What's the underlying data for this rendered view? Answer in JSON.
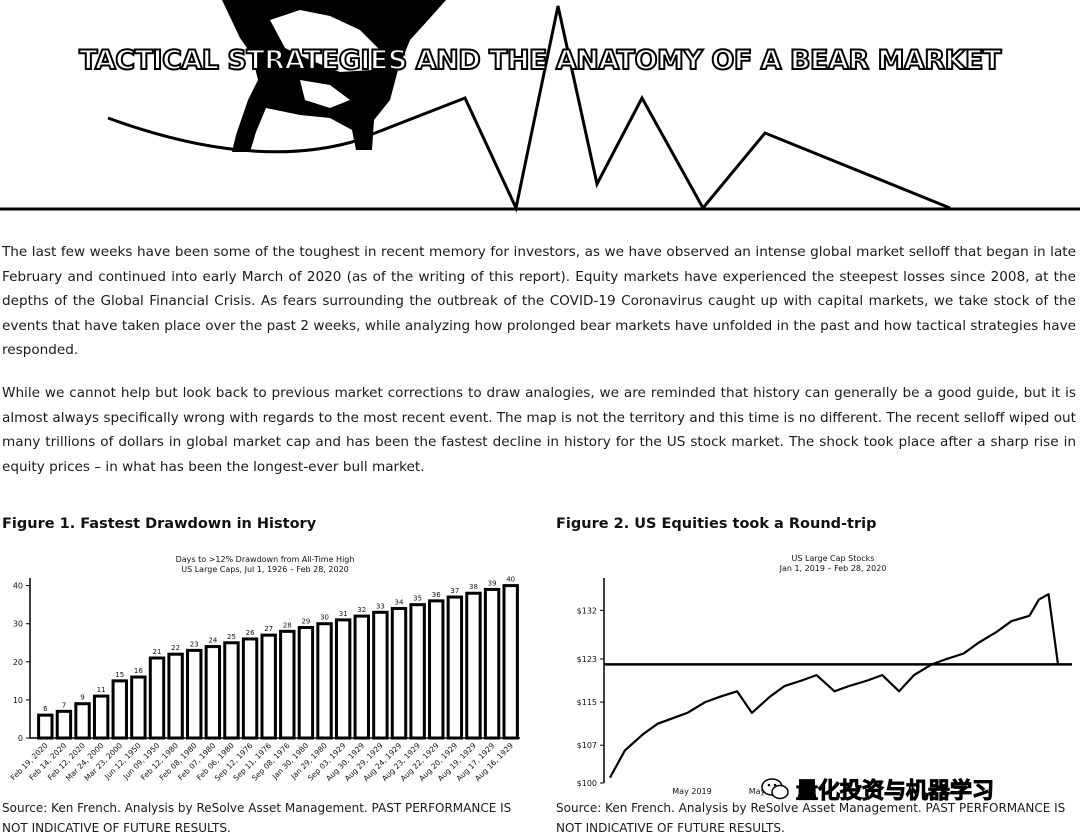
{
  "banner": {
    "title": "TACTICAL STRATEGIES AND THE ANATOMY OF A BEAR MARKET"
  },
  "paragraphs": [
    "The last few weeks have been some of the toughest in recent memory for investors, as we have observed an intense global market selloff that began in late February and continued into early March of 2020 (as of the writing of this report). Equity markets have experienced the steepest losses since 2008, at the depths of the Global Financial Crisis. As fears surrounding the outbreak of the COVID-19 Coronavirus caught up with capital markets, we take stock of the events that have taken place over the past 2 weeks, while analyzing how prolonged bear markets have unfolded in the past and how tactical strategies have responded.",
    "While we cannot help but look back to previous market corrections to draw analogies, we are reminded that history can generally be a good guide, but it is almost always specifically wrong with regards to the most recent event. The map is not the territory and this time is no different. The recent selloff wiped out many trillions of dollars in global market cap and has been the fastest decline in history for the US stock market. The shock took place after a sharp rise in equity prices – in what has been the longest-ever bull market."
  ],
  "figure1": {
    "caption": "Figure 1. Fastest Drawdown in History",
    "source": "Source: Ken French. Analysis by ReSolve Asset Management. PAST PERFORMANCE IS NOT INDICATIVE OF FUTURE RESULTS."
  },
  "figure2": {
    "caption": "Figure 2. US Equities took a Round-trip",
    "source": "Source: Ken French. Analysis by ReSolve Asset Management. PAST PERFORMANCE IS NOT INDICATIVE OF FUTURE RESULTS."
  },
  "watermark": {
    "text": "量化投资与机器学习",
    "icon": "wechat-icon"
  },
  "chart_data": [
    {
      "type": "bar",
      "title": "Days to >12% Drawdown from All-Time High",
      "subtitle": "US Large Caps, Jul 1, 1926 – Feb 28, 2020",
      "xlabel": "",
      "ylabel": "",
      "ylim": [
        0,
        42
      ],
      "yticks": [
        0,
        10,
        20,
        30,
        40
      ],
      "grid": false,
      "categories": [
        "Feb 19, 2020",
        "Feb 14, 2020",
        "Feb 12, 2020",
        "Mar 24, 2000",
        "Mar 23, 2000",
        "Jun 12, 1950",
        "Jun 09, 1950",
        "Feb 12, 1980",
        "Feb 08, 1980",
        "Feb 07, 1980",
        "Feb 06, 1980",
        "Sep 12, 1976",
        "Sep 11, 1976",
        "Sep 08, 1976",
        "Jan 30, 1980",
        "Jan 29, 1980",
        "Sep 03, 1929",
        "Aug 30, 1929",
        "Aug 29, 1929",
        "Aug 24, 1929",
        "Aug 23, 1929",
        "Aug 22, 1929",
        "Aug 20, 1929",
        "Aug 19, 1929",
        "Aug 17, 1929",
        "Aug 16, 1929"
      ],
      "values": [
        6,
        7,
        9,
        11,
        15,
        16,
        21,
        22,
        23,
        24,
        25,
        26,
        27,
        28,
        29,
        30,
        31,
        32,
        33,
        34,
        35,
        36,
        37,
        38,
        39,
        40
      ]
    },
    {
      "type": "line",
      "title": "US Large Cap Stocks",
      "subtitle": "Jan 1, 2019 – Feb 28, 2020",
      "xlabel": "",
      "ylabel": "",
      "ylim": [
        100,
        138
      ],
      "yticks": [
        100,
        107,
        115,
        123,
        132
      ],
      "ytick_labels": [
        "$100",
        "$107",
        "$115",
        "$123",
        "$132"
      ],
      "xtick_labels": [
        "May 2019",
        "May"
      ],
      "reference_line": 122,
      "grid": false,
      "x": [
        "2019-01-01",
        "2019-01-15",
        "2019-02-01",
        "2019-02-15",
        "2019-03-01",
        "2019-03-15",
        "2019-04-01",
        "2019-04-15",
        "2019-05-01",
        "2019-05-15",
        "2019-06-01",
        "2019-06-15",
        "2019-07-01",
        "2019-07-15",
        "2019-08-01",
        "2019-08-15",
        "2019-09-01",
        "2019-09-15",
        "2019-10-01",
        "2019-10-15",
        "2019-11-01",
        "2019-11-15",
        "2019-12-01",
        "2019-12-15",
        "2020-01-01",
        "2020-01-15",
        "2020-02-01",
        "2020-02-10",
        "2020-02-19",
        "2020-02-28"
      ],
      "values": [
        101,
        106,
        109,
        111,
        112,
        113,
        115,
        116,
        117,
        113,
        116,
        118,
        119,
        120,
        117,
        118,
        119,
        120,
        117,
        120,
        122,
        123,
        124,
        126,
        128,
        130,
        131,
        134,
        135,
        122
      ]
    }
  ]
}
